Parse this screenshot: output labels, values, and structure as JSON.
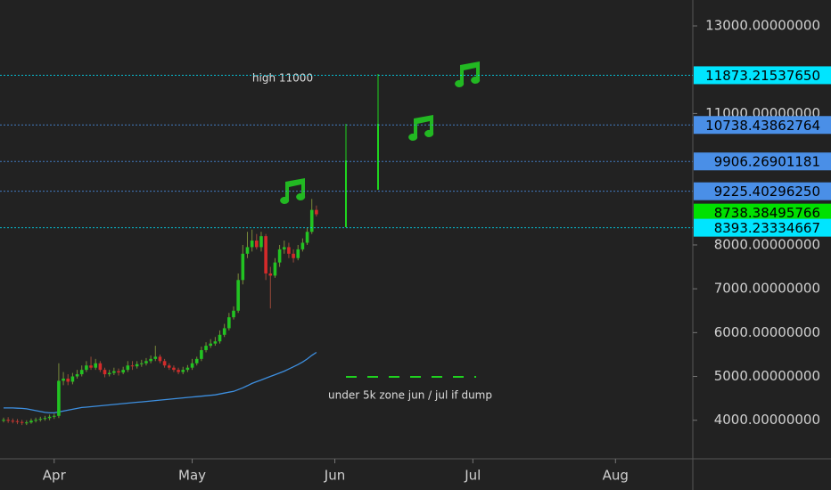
{
  "chart_data": {
    "type": "candlestick",
    "categories": [
      "Apr",
      "May",
      "Jun",
      "Jul",
      "Aug"
    ],
    "open": [
      4000,
      4010,
      3990,
      3980,
      3960,
      3940,
      3950,
      3990,
      4010,
      4030,
      4050,
      4080,
      4100,
      4900,
      4950,
      4880,
      5000,
      5050,
      5150,
      5250,
      5200,
      5300,
      5150,
      5050,
      5080,
      5120,
      5090,
      5150,
      5250,
      5230,
      5280,
      5300,
      5350,
      5400,
      5450,
      5350,
      5250,
      5200,
      5150,
      5100,
      5150,
      5200,
      5300,
      5400,
      5600,
      5700,
      5750,
      5800,
      5950,
      6100,
      6350,
      6500,
      7200,
      7800,
      7950,
      8100,
      7950,
      8200,
      7350,
      7300,
      7600,
      7900,
      7950,
      7800,
      7700,
      7900,
      8050,
      8300,
      8800
    ],
    "high": [
      4060,
      4070,
      4040,
      4030,
      4010,
      4000,
      4040,
      4060,
      4080,
      4100,
      4130,
      4150,
      5300,
      5100,
      5050,
      5080,
      5150,
      5250,
      5350,
      5450,
      5400,
      5350,
      5200,
      5150,
      5200,
      5180,
      5220,
      5350,
      5350,
      5350,
      5380,
      5420,
      5480,
      5700,
      5500,
      5400,
      5300,
      5250,
      5200,
      5220,
      5260,
      5400,
      5450,
      5680,
      5780,
      5850,
      5900,
      6050,
      6200,
      6450,
      6600,
      7350,
      8000,
      8300,
      8350,
      8250,
      8300,
      8250,
      7500,
      7700,
      8000,
      8100,
      8050,
      7900,
      8000,
      8150,
      8400,
      9050,
      8900
    ],
    "low": [
      3950,
      3940,
      3930,
      3910,
      3890,
      3890,
      3920,
      3950,
      3970,
      3990,
      4000,
      4030,
      4050,
      4800,
      4800,
      4820,
      4950,
      5000,
      5100,
      5150,
      5150,
      5100,
      4980,
      5000,
      5030,
      5020,
      5050,
      5100,
      5150,
      5180,
      5220,
      5250,
      5300,
      5350,
      5300,
      5200,
      5150,
      5100,
      5050,
      5050,
      5100,
      5150,
      5250,
      5350,
      5550,
      5650,
      5700,
      5750,
      5900,
      6050,
      6300,
      6450,
      7100,
      7700,
      7850,
      7900,
      7850,
      7200,
      6550,
      7250,
      7500,
      7800,
      7700,
      7600,
      7650,
      7850,
      8000,
      8250,
      8650
    ],
    "close": [
      4010,
      3990,
      3980,
      3960,
      3940,
      3950,
      3990,
      4010,
      4030,
      4050,
      4080,
      4100,
      4900,
      4950,
      4880,
      5000,
      5050,
      5150,
      5250,
      5200,
      5300,
      5150,
      5050,
      5080,
      5120,
      5090,
      5150,
      5250,
      5230,
      5280,
      5300,
      5350,
      5400,
      5450,
      5350,
      5250,
      5200,
      5150,
      5100,
      5150,
      5200,
      5300,
      5400,
      5600,
      5700,
      5750,
      5800,
      5950,
      6100,
      6350,
      6500,
      7200,
      7800,
      7950,
      8100,
      7950,
      8200,
      7350,
      7300,
      7600,
      7900,
      7950,
      7800,
      7700,
      7900,
      8050,
      8300,
      8800,
      8700
    ],
    "up_color": "#22c322",
    "down_color": "#d42a2a",
    "ma": {
      "color": "#3d8fe0",
      "values": [
        4280,
        4280,
        4280,
        4275,
        4270,
        4260,
        4240,
        4220,
        4200,
        4180,
        4170,
        4170,
        4190,
        4210,
        4230,
        4250,
        4270,
        4290,
        4300,
        4310,
        4320,
        4330,
        4340,
        4350,
        4360,
        4370,
        4380,
        4390,
        4400,
        4410,
        4420,
        4430,
        4440,
        4450,
        4460,
        4470,
        4480,
        4490,
        4500,
        4510,
        4520,
        4530,
        4540,
        4550,
        4560,
        4570,
        4580,
        4600,
        4620,
        4640,
        4660,
        4700,
        4740,
        4790,
        4840,
        4880,
        4920,
        4960,
        5000,
        5040,
        5080,
        5120,
        5170,
        5220,
        5270,
        5330,
        5400,
        5480,
        5550
      ]
    },
    "ylim": [
      3120,
      13590
    ],
    "yticks": [
      {
        "value": 4000,
        "label": "4000.00000000"
      },
      {
        "value": 5000,
        "label": "5000.00000000"
      },
      {
        "value": 6000,
        "label": "6000.00000000"
      },
      {
        "value": 7000,
        "label": "7000.00000000"
      },
      {
        "value": 8000,
        "label": "8000.00000000"
      },
      {
        "value": 11000,
        "label": "11000.00000000"
      },
      {
        "value": 13000,
        "label": "13000.00000000"
      }
    ],
    "levels": [
      {
        "value": 11873.2153765,
        "label": "11873.21537650",
        "color": "#00e5ff",
        "line": true
      },
      {
        "value": 10738.43862764,
        "label": "10738.43862764",
        "color": "#4a8fe7",
        "line": true
      },
      {
        "value": 9906.26901181,
        "label": "9906.26901181",
        "color": "#4a8fe7",
        "line": true
      },
      {
        "value": 9225.4029625,
        "label": "9225.40296250",
        "color": "#4a8fe7",
        "line": true
      },
      {
        "value": 8738.38495766,
        "label": "8738.38495766",
        "color": "#00e000",
        "line": false
      },
      {
        "value": 8393.23334667,
        "label": "8393.23334667",
        "color": "#00e5ff",
        "line": true
      }
    ],
    "annotations": [
      "high 11000",
      "under 5k zone jun / jul if dump"
    ]
  }
}
